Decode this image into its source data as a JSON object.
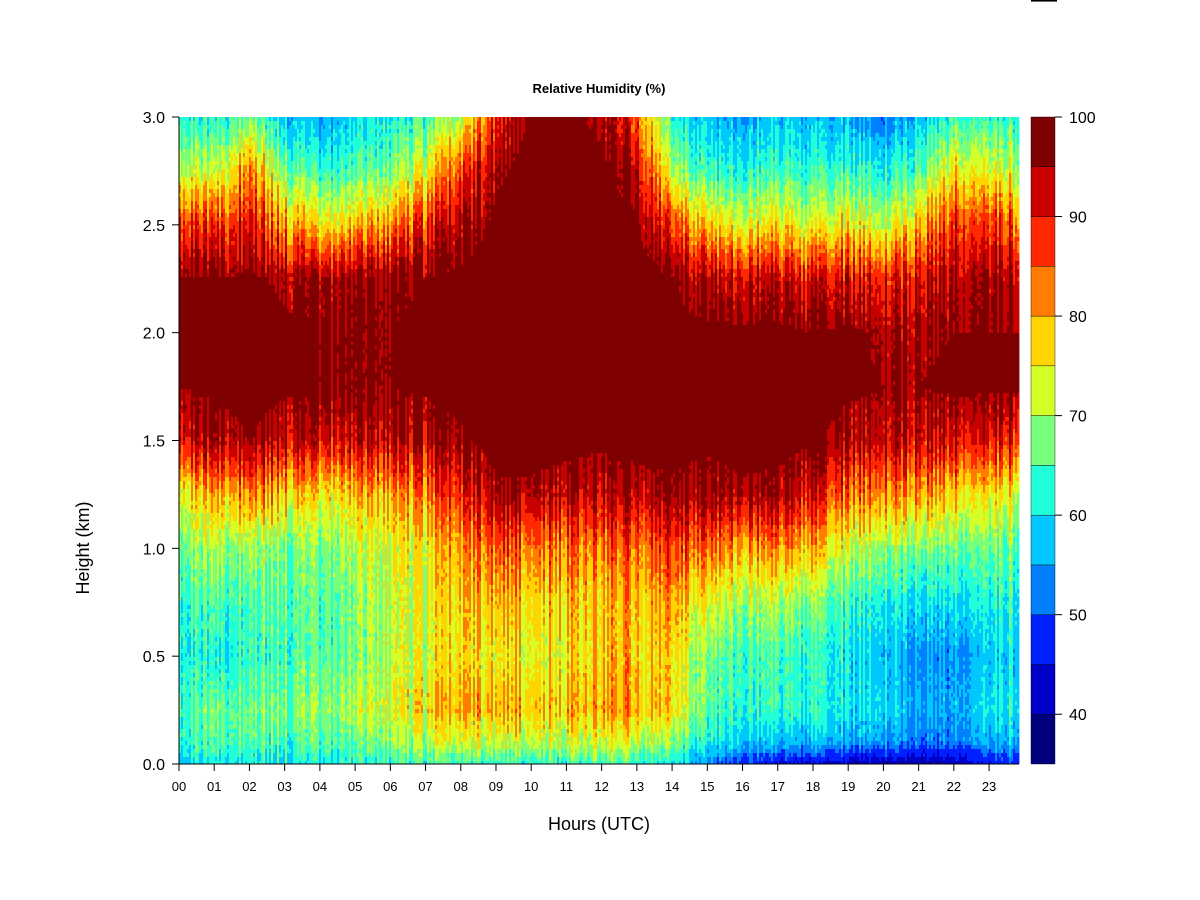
{
  "chart_data": {
    "type": "heatmap",
    "title": "Relative Humidity (%)",
    "xlabel": "Hours (UTC)",
    "ylabel": "Height (km)",
    "xlim": [
      0,
      23.85
    ],
    "ylim": [
      0,
      3.0
    ],
    "x_ticks": [
      0,
      1,
      2,
      3,
      4,
      5,
      6,
      7,
      8,
      9,
      10,
      11,
      12,
      13,
      14,
      15,
      16,
      17,
      18,
      19,
      20,
      21,
      22,
      23
    ],
    "x_tick_labels": [
      "00",
      "01",
      "02",
      "03",
      "04",
      "05",
      "06",
      "07",
      "08",
      "09",
      "10",
      "11",
      "12",
      "13",
      "14",
      "15",
      "16",
      "17",
      "18",
      "19",
      "20",
      "21",
      "22",
      "23"
    ],
    "y_ticks": [
      0.0,
      0.5,
      1.0,
      1.5,
      2.0,
      2.5,
      3.0
    ],
    "y_tick_labels": [
      "0.0",
      "0.5",
      "1.0",
      "1.5",
      "2.0",
      "2.5",
      "3.0"
    ],
    "colorbar": {
      "levels": [
        35,
        40,
        45,
        50,
        55,
        60,
        65,
        70,
        75,
        80,
        85,
        90,
        95,
        100
      ],
      "tick_values": [
        40,
        50,
        60,
        70,
        80,
        90,
        100
      ],
      "tick_labels": [
        "40",
        "50",
        "60",
        "70",
        "80",
        "90",
        "100"
      ],
      "colors": [
        "#00007f",
        "#0000c8",
        "#0020ff",
        "#0080ff",
        "#00c8ff",
        "#20ffd8",
        "#78ff7c",
        "#d4ff28",
        "#ffd400",
        "#ff7c00",
        "#ff2800",
        "#c80000",
        "#7f0000"
      ]
    },
    "heights_km": [
      0.0,
      0.1,
      0.25,
      0.5,
      0.75,
      1.0,
      1.25,
      1.5,
      1.75,
      2.0,
      2.25,
      2.5,
      2.75,
      3.0
    ],
    "profiles": [
      {
        "hour": 0,
        "rh": [
          58,
          62,
          64,
          62,
          63,
          67,
          74,
          91,
          97,
          97,
          97,
          88,
          72,
          62
        ]
      },
      {
        "hour": 1,
        "rh": [
          60,
          64,
          66,
          60,
          64,
          69,
          78,
          94,
          98,
          98,
          97,
          86,
          70,
          60
        ]
      },
      {
        "hour": 2,
        "rh": [
          62,
          66,
          68,
          64,
          66,
          70,
          84,
          97,
          99,
          99,
          98,
          92,
          84,
          68
        ]
      },
      {
        "hour": 3,
        "rh": [
          60,
          65,
          68,
          65,
          66,
          68,
          78,
          94,
          98,
          98,
          96,
          82,
          68,
          58
        ]
      },
      {
        "hour": 4,
        "rh": [
          60,
          64,
          67,
          64,
          64,
          66,
          74,
          90,
          97,
          97,
          94,
          74,
          62,
          54
        ]
      },
      {
        "hour": 5,
        "rh": [
          61,
          65,
          70,
          66,
          67,
          70,
          77,
          91,
          97,
          97,
          95,
          77,
          64,
          58
        ]
      },
      {
        "hour": 6,
        "rh": [
          62,
          67,
          72,
          70,
          70,
          72,
          79,
          92,
          97,
          97,
          96,
          80,
          66,
          60
        ]
      },
      {
        "hour": 7,
        "rh": [
          63,
          70,
          76,
          72,
          73,
          75,
          82,
          93,
          98,
          98,
          97,
          88,
          74,
          64
        ]
      },
      {
        "hour": 8,
        "rh": [
          64,
          72,
          79,
          76,
          77,
          80,
          88,
          96,
          99,
          99,
          98,
          94,
          86,
          70
        ]
      },
      {
        "hour": 9,
        "rh": [
          64,
          72,
          80,
          76,
          80,
          86,
          96,
          99,
          100,
          99,
          99,
          98,
          96,
          90
        ]
      },
      {
        "hour": 10,
        "rh": [
          64,
          72,
          79,
          75,
          78,
          84,
          96,
          99,
          100,
          100,
          99,
          99,
          99,
          98
        ]
      },
      {
        "hour": 11,
        "rh": [
          64,
          72,
          79,
          76,
          78,
          84,
          94,
          99,
          100,
          100,
          100,
          99,
          99,
          98
        ]
      },
      {
        "hour": 12,
        "rh": [
          64,
          73,
          80,
          78,
          78,
          83,
          93,
          98,
          100,
          100,
          100,
          99,
          98,
          96
        ]
      },
      {
        "hour": 13,
        "rh": [
          63,
          72,
          80,
          78,
          79,
          84,
          94,
          99,
          100,
          100,
          99,
          98,
          94,
          86
        ]
      },
      {
        "hour": 14,
        "rh": [
          60,
          68,
          76,
          76,
          80,
          86,
          96,
          99,
          100,
          99,
          97,
          86,
          70,
          62
        ]
      },
      {
        "hour": 15,
        "rh": [
          52,
          60,
          64,
          66,
          72,
          82,
          94,
          98,
          99,
          98,
          92,
          76,
          62,
          56
        ]
      },
      {
        "hour": 16,
        "rh": [
          48,
          58,
          63,
          64,
          70,
          80,
          96,
          99,
          99,
          98,
          92,
          74,
          62,
          55
        ]
      },
      {
        "hour": 17,
        "rh": [
          44,
          57,
          63,
          64,
          70,
          82,
          95,
          99,
          98,
          98,
          93,
          76,
          64,
          58
        ]
      },
      {
        "hour": 18,
        "rh": [
          44,
          56,
          62,
          62,
          67,
          78,
          90,
          98,
          98,
          97,
          90,
          72,
          62,
          56
        ]
      },
      {
        "hour": 19,
        "rh": [
          42,
          55,
          60,
          60,
          64,
          72,
          84,
          95,
          98,
          98,
          92,
          76,
          64,
          56
        ]
      },
      {
        "hour": 20,
        "rh": [
          42,
          55,
          60,
          58,
          62,
          70,
          83,
          94,
          97,
          96,
          90,
          72,
          62,
          52
        ]
      },
      {
        "hour": 21,
        "rh": [
          40,
          52,
          56,
          54,
          60,
          68,
          82,
          93,
          97,
          96,
          92,
          80,
          66,
          58
        ]
      },
      {
        "hour": 22,
        "rh": [
          42,
          52,
          56,
          54,
          60,
          67,
          78,
          92,
          98,
          97,
          95,
          88,
          76,
          64
        ]
      },
      {
        "hour": 23,
        "rh": [
          46,
          56,
          60,
          58,
          62,
          67,
          76,
          91,
          98,
          97,
          96,
          88,
          74,
          64
        ]
      },
      {
        "hour": 23.85,
        "rh": [
          48,
          58,
          62,
          60,
          63,
          67,
          75,
          91,
          98,
          97,
          96,
          86,
          72,
          64
        ]
      }
    ]
  }
}
